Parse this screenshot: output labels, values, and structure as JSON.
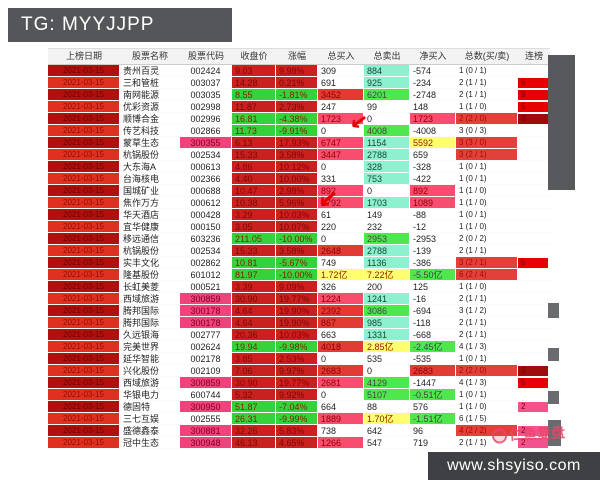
{
  "title": "TG: MYYJJPP",
  "footer_url": "www.shsyiso.com",
  "annotations": {
    "arrow_glyph": "↙",
    "watermark_text": "仁鱼复盘"
  },
  "colors": {
    "titlebar_bg": "#55565a",
    "date_red": "#e03022",
    "date_dark_red": "#ad120c",
    "code_highlight_pink": "#f0437c",
    "up_red": "#c92020",
    "down_green": "#35d23c",
    "buy_pink": "#f84d6e",
    "buy_red": "#e23a35",
    "sell_cyan": "#8df0cf",
    "sell_green": "#4ee84e",
    "yi_yellow": "#ffff70",
    "badge_red": "#e60000",
    "badge_dark_red": "#9d0b0b",
    "badge_pink": "#f2538c",
    "footer_bg": "#3f4043"
  },
  "table": {
    "headers": [
      "上榜日期",
      "股票名称",
      "股票代码",
      "收盘价",
      "涨幅",
      "总买入",
      "总卖出",
      "净买入",
      "总数(买/卖)",
      "连榜"
    ],
    "rows": [
      {
        "date": "2021-03-15",
        "name": "贵州百灵",
        "code": "002424",
        "code_hl": false,
        "price": "9.03",
        "change": "9.98%",
        "trend": "up",
        "buy": "309",
        "buy_bg": null,
        "sell": "884",
        "sell_bg": "cyan",
        "net": "-574",
        "net_bg": null,
        "count": "1 (0 / 1)",
        "count_hl": false,
        "streak": "",
        "streak_color": null
      },
      {
        "date": "2021-03-15",
        "name": "三和管桩",
        "code": "003037",
        "code_hl": false,
        "price": "14.28",
        "change": "0.21%",
        "trend": "up",
        "buy": "691",
        "buy_bg": null,
        "sell": "925",
        "sell_bg": "cyan",
        "net": "-234",
        "net_bg": null,
        "count": "2 (1 / 1)",
        "count_hl": false,
        "streak": "6",
        "streak_color": "red"
      },
      {
        "date": "2021-03-15",
        "name": "南网能源",
        "code": "003035",
        "code_hl": false,
        "price": "8.55",
        "change": "-1.81%",
        "trend": "down",
        "buy": "3452",
        "buy_bg": "red",
        "sell": "6201",
        "sell_bg": "green",
        "net": "-2748",
        "net_bg": null,
        "count": "2 (1 / 1)",
        "count_hl": false,
        "streak": "9",
        "streak_color": "red"
      },
      {
        "date": "2021-03-15",
        "name": "优彩资源",
        "code": "002998",
        "code_hl": false,
        "price": "11.87",
        "change": "2.73%",
        "trend": "up",
        "buy": "247",
        "buy_bg": null,
        "sell": "99",
        "sell_bg": null,
        "net": "148",
        "net_bg": null,
        "count": "1 (1 / 0)",
        "count_hl": false,
        "streak": "5",
        "streak_color": "red"
      },
      {
        "date": "2021-03-15",
        "name": "顺博合金",
        "code": "002996",
        "code_hl": false,
        "price": "16.81",
        "change": "-4.38%",
        "trend": "down",
        "buy": "1723",
        "buy_bg": "pink",
        "sell": "0",
        "sell_bg": null,
        "net": "1723",
        "net_bg": "pink",
        "count": "2 (2 / 0)",
        "count_hl": true,
        "streak": "3",
        "streak_color": "dark"
      },
      {
        "date": "2021-03-15",
        "name": "传艺科技",
        "code": "002866",
        "code_hl": false,
        "price": "11.73",
        "change": "-9.91%",
        "trend": "down",
        "buy": "0",
        "buy_bg": null,
        "sell": "4008",
        "sell_bg": "green",
        "net": "-4008",
        "net_bg": null,
        "count": "3 (0 / 3)",
        "count_hl": false,
        "streak": "",
        "streak_color": null
      },
      {
        "date": "2021-03-15",
        "name": "蒙草生态",
        "code": "300355",
        "code_hl": true,
        "price": "6.13",
        "change": "17.93%",
        "trend": "up",
        "buy": "6747",
        "buy_bg": "pink",
        "sell": "1154",
        "sell_bg": "cyan",
        "net": "5592",
        "net_bg": "yellow",
        "count": "3 (3 / 0)",
        "count_hl": true,
        "streak": "",
        "streak_color": null
      },
      {
        "date": "2021-03-15",
        "name": "杭锅股份",
        "code": "002534",
        "code_hl": false,
        "price": "15.33",
        "change": "3.58%",
        "trend": "up",
        "buy": "3447",
        "buy_bg": "pink",
        "sell": "2788",
        "sell_bg": "cyan",
        "net": "659",
        "net_bg": null,
        "count": "3 (2 / 1)",
        "count_hl": true,
        "streak": "",
        "streak_color": null
      },
      {
        "date": "2021-03-15",
        "name": "大东海A",
        "code": "000613",
        "code_hl": false,
        "price": "4.86",
        "change": "10.12%",
        "trend": "up",
        "buy": "0",
        "buy_bg": null,
        "sell": "328",
        "sell_bg": "cyan",
        "net": "-328",
        "net_bg": null,
        "count": "1 (0 / 1)",
        "count_hl": false,
        "streak": "",
        "streak_color": null
      },
      {
        "date": "2021-03-15",
        "name": "台海核电",
        "code": "002366",
        "code_hl": false,
        "price": "4.40",
        "change": "10.00%",
        "trend": "up",
        "buy": "331",
        "buy_bg": null,
        "sell": "753",
        "sell_bg": "cyan",
        "net": "-422",
        "net_bg": null,
        "count": "1 (0 / 1)",
        "count_hl": false,
        "streak": "",
        "streak_color": null
      },
      {
        "date": "2021-03-15",
        "name": "国城矿业",
        "code": "000688",
        "code_hl": false,
        "price": "10.47",
        "change": "2.98%",
        "trend": "up",
        "buy": "892",
        "buy_bg": "pink",
        "sell": "0",
        "sell_bg": null,
        "net": "892",
        "net_bg": "pink",
        "count": "1 (1 / 0)",
        "count_hl": false,
        "streak": "",
        "streak_color": null
      },
      {
        "date": "2021-03-15",
        "name": "焦作万方",
        "code": "000612",
        "code_hl": false,
        "price": "10.38",
        "change": "5.96%",
        "trend": "up",
        "buy": "2792",
        "buy_bg": "pink",
        "sell": "1703",
        "sell_bg": "cyan",
        "net": "1089",
        "net_bg": "pink",
        "count": "1 (1 / 0)",
        "count_hl": false,
        "streak": "",
        "streak_color": null
      },
      {
        "date": "2021-03-15",
        "name": "华天酒店",
        "code": "000428",
        "code_hl": false,
        "price": "3.29",
        "change": "10.03%",
        "trend": "up",
        "buy": "61",
        "buy_bg": null,
        "sell": "149",
        "sell_bg": null,
        "net": "-88",
        "net_bg": null,
        "count": "1 (0 / 1)",
        "count_hl": false,
        "streak": "",
        "streak_color": null
      },
      {
        "date": "2021-03-15",
        "name": "宜华健康",
        "code": "000150",
        "code_hl": false,
        "price": "3.05",
        "change": "10.07%",
        "trend": "up",
        "buy": "220",
        "buy_bg": null,
        "sell": "232",
        "sell_bg": null,
        "net": "-12",
        "net_bg": null,
        "count": "1 (1 / 0)",
        "count_hl": false,
        "streak": "",
        "streak_color": null
      },
      {
        "date": "2021-03-15",
        "name": "移远通信",
        "code": "603236",
        "code_hl": false,
        "price": "211.05",
        "change": "-10.00%",
        "trend": "down",
        "buy": "0",
        "buy_bg": null,
        "sell": "2953",
        "sell_bg": "green",
        "net": "-2953",
        "net_bg": null,
        "count": "2 (0 / 2)",
        "count_hl": false,
        "streak": "",
        "streak_color": null
      },
      {
        "date": "2021-03-15",
        "name": "杭锅股份",
        "code": "002534",
        "code_hl": false,
        "price": "15.33",
        "change": "3.58%",
        "trend": "up",
        "buy": "2648",
        "buy_bg": "red",
        "sell": "2788",
        "sell_bg": "cyan",
        "net": "-139",
        "net_bg": null,
        "count": "2 (1 / 1)",
        "count_hl": false,
        "streak": "",
        "streak_color": null
      },
      {
        "date": "2021-03-15",
        "name": "实丰文化",
        "code": "002862",
        "code_hl": false,
        "price": "10.81",
        "change": "-5.67%",
        "trend": "down",
        "buy": "749",
        "buy_bg": null,
        "sell": "1136",
        "sell_bg": "cyan",
        "net": "-386",
        "net_bg": null,
        "count": "3 (2 / 1)",
        "count_hl": true,
        "streak": "5",
        "streak_color": "red"
      },
      {
        "date": "2021-03-15",
        "name": "隆基股份",
        "code": "601012",
        "code_hl": false,
        "price": "81.97",
        "change": "-10.00%",
        "trend": "down",
        "buy": "1.72亿",
        "buy_bg": "yellow",
        "sell": "7.22亿",
        "sell_bg": "yellow",
        "net": "-5.50亿",
        "net_bg": "green",
        "count": "6 (2 / 4)",
        "count_hl": true,
        "streak": "",
        "streak_color": null
      },
      {
        "date": "2021-03-15",
        "name": "长虹美菱",
        "code": "000521",
        "code_hl": false,
        "price": "3.39",
        "change": "9.09%",
        "trend": "up",
        "buy": "326",
        "buy_bg": null,
        "sell": "200",
        "sell_bg": null,
        "net": "125",
        "net_bg": null,
        "count": "1 (1 / 0)",
        "count_hl": false,
        "streak": "",
        "streak_color": null
      },
      {
        "date": "2021-03-15",
        "name": "西域旅游",
        "code": "300859",
        "code_hl": true,
        "price": "30.90",
        "change": "19.77%",
        "trend": "up",
        "buy": "1224",
        "buy_bg": "pink",
        "sell": "1241",
        "sell_bg": "cyan",
        "net": "-16",
        "net_bg": null,
        "count": "2 (1 / 1)",
        "count_hl": false,
        "streak": "",
        "streak_color": null
      },
      {
        "date": "2021-03-15",
        "name": "腾邦国际",
        "code": "300178",
        "code_hl": true,
        "price": "4.64",
        "change": "19.90%",
        "trend": "up",
        "buy": "2392",
        "buy_bg": "red",
        "sell": "3086",
        "sell_bg": "green",
        "net": "-694",
        "net_bg": null,
        "count": "3 (1 / 2)",
        "count_hl": false,
        "streak": "",
        "streak_color": null
      },
      {
        "date": "2021-03-15",
        "name": "腾邦国际",
        "code": "300178",
        "code_hl": true,
        "price": "4.64",
        "change": "19.90%",
        "trend": "up",
        "buy": "867",
        "buy_bg": "red",
        "sell": "985",
        "sell_bg": "cyan",
        "net": "-118",
        "net_bg": null,
        "count": "2 (1 / 1)",
        "count_hl": false,
        "streak": "",
        "streak_color": null
      },
      {
        "date": "2021-03-15",
        "name": "久远银海",
        "code": "002777",
        "code_hl": false,
        "price": "20.36",
        "change": "10.03%",
        "trend": "up",
        "buy": "663",
        "buy_bg": null,
        "sell": "1331",
        "sell_bg": "cyan",
        "net": "-668",
        "net_bg": null,
        "count": "2 (1 / 1)",
        "count_hl": false,
        "streak": "",
        "streak_color": null
      },
      {
        "date": "2021-03-15",
        "name": "完美世界",
        "code": "002624",
        "code_hl": false,
        "price": "19.94",
        "change": "-9.98%",
        "trend": "down",
        "buy": "4018",
        "buy_bg": "red",
        "sell": "2.85亿",
        "sell_bg": "yellow",
        "net": "-2.45亿",
        "net_bg": "green",
        "count": "4 (1 / 3)",
        "count_hl": false,
        "streak": "",
        "streak_color": null
      },
      {
        "date": "2021-03-15",
        "name": "延华智能",
        "code": "002178",
        "code_hl": false,
        "price": "3.85",
        "change": "2.53%",
        "trend": "up",
        "buy": "0",
        "buy_bg": null,
        "sell": "535",
        "sell_bg": null,
        "net": "-535",
        "net_bg": null,
        "count": "1 (0 / 1)",
        "count_hl": false,
        "streak": "",
        "streak_color": null
      },
      {
        "date": "2021-03-15",
        "name": "兴化股份",
        "code": "002109",
        "code_hl": false,
        "price": "7.06",
        "change": "9.97%",
        "trend": "up",
        "buy": "2683",
        "buy_bg": "red",
        "sell": "0",
        "sell_bg": null,
        "net": "2683",
        "net_bg": "red",
        "count": "2 (2 / 0)",
        "count_hl": true,
        "streak": "3",
        "streak_color": "dark"
      },
      {
        "date": "2021-03-15",
        "name": "西域旅游",
        "code": "300859",
        "code_hl": true,
        "price": "30.90",
        "change": "19.77%",
        "trend": "up",
        "buy": "2681",
        "buy_bg": "pink",
        "sell": "4129",
        "sell_bg": "green",
        "net": "-1447",
        "net_bg": null,
        "count": "4 (1 / 3)",
        "count_hl": false,
        "streak": "5",
        "streak_color": "red"
      },
      {
        "date": "2021-03-15",
        "name": "华银电力",
        "code": "600744",
        "code_hl": false,
        "price": "5.32",
        "change": "9.92%",
        "trend": "up",
        "buy": "0",
        "buy_bg": null,
        "sell": "5107",
        "sell_bg": "green",
        "net": "-0.51亿",
        "net_bg": "green",
        "count": "1 (0 / 1)",
        "count_hl": false,
        "streak": "",
        "streak_color": null
      },
      {
        "date": "2021-03-15",
        "name": "德固特",
        "code": "300950",
        "code_hl": true,
        "price": "51.87",
        "change": "-7.04%",
        "trend": "down",
        "buy": "664",
        "buy_bg": null,
        "sell": "88",
        "sell_bg": null,
        "net": "576",
        "net_bg": null,
        "count": "1 (1 / 0)",
        "count_hl": false,
        "streak": "2",
        "streak_color": "pink"
      },
      {
        "date": "2021-03-15",
        "name": "三七互娱",
        "code": "002555",
        "code_hl": false,
        "price": "26.31",
        "change": "-9.99%",
        "trend": "down",
        "buy": "1889",
        "buy_bg": "pink",
        "sell": "1.70亿",
        "sell_bg": "yellow",
        "net": "-1.51亿",
        "net_bg": "green",
        "count": "6 (1 / 5)",
        "count_hl": false,
        "streak": "",
        "streak_color": null
      },
      {
        "date": "2021-03-15",
        "name": "盛德鑫泰",
        "code": "300881",
        "code_hl": true,
        "price": "32.26",
        "change": "5.83%",
        "trend": "up",
        "buy": "738",
        "buy_bg": null,
        "sell": "642",
        "sell_bg": null,
        "net": "96",
        "net_bg": null,
        "count": "4 (2 / 2)",
        "count_hl": true,
        "streak": "2",
        "streak_color": "pink"
      },
      {
        "date": "2021-03-15",
        "name": "冠中生态",
        "code": "300948",
        "code_hl": true,
        "price": "46.13",
        "change": "4.65%",
        "trend": "up",
        "buy": "1266",
        "buy_bg": "pink",
        "sell": "547",
        "sell_bg": null,
        "net": "719",
        "net_bg": null,
        "count": "2 (1 / 1)",
        "count_hl": false,
        "streak": "2",
        "streak_color": "pink"
      }
    ]
  }
}
